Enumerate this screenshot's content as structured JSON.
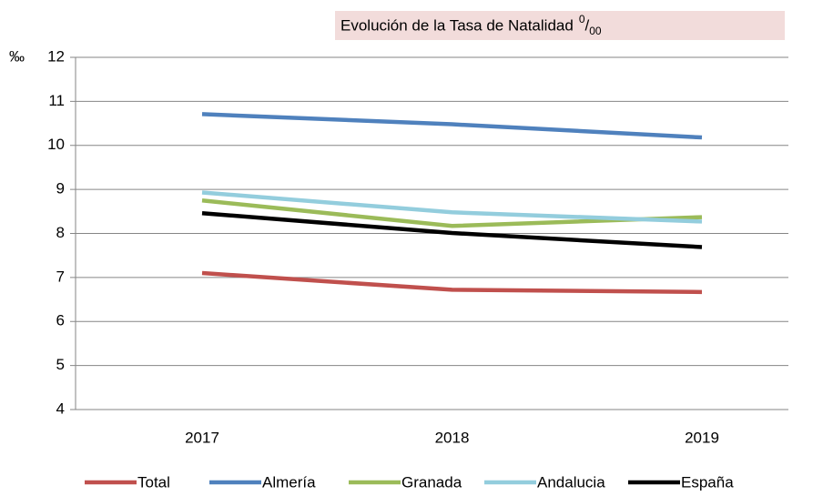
{
  "chart_data": {
    "type": "line",
    "title": "Evolución de la Tasa de Natalidad",
    "title_unit": [
      "0",
      "/",
      "00"
    ],
    "y_unit": "‰",
    "categories": [
      "2017",
      "2018",
      "2019"
    ],
    "series": [
      {
        "name": "Total",
        "color": "#c0504d",
        "values": [
          7.1,
          6.72,
          6.67
        ]
      },
      {
        "name": "Almería",
        "color": "#4f81bd",
        "values": [
          10.71,
          10.48,
          10.18
        ]
      },
      {
        "name": "Granada",
        "color": "#9bbb59",
        "values": [
          8.75,
          8.17,
          8.37
        ]
      },
      {
        "name": "Andalucia",
        "color": "#93cddd",
        "values": [
          8.93,
          8.48,
          8.27
        ]
      },
      {
        "name": "España",
        "color": "#000000",
        "values": [
          8.46,
          8.01,
          7.69
        ]
      }
    ],
    "ylim": [
      4,
      12
    ],
    "yticks": [
      4,
      5,
      6,
      7,
      8,
      9,
      10,
      11,
      12
    ],
    "grid": true,
    "legend": "bottom"
  }
}
